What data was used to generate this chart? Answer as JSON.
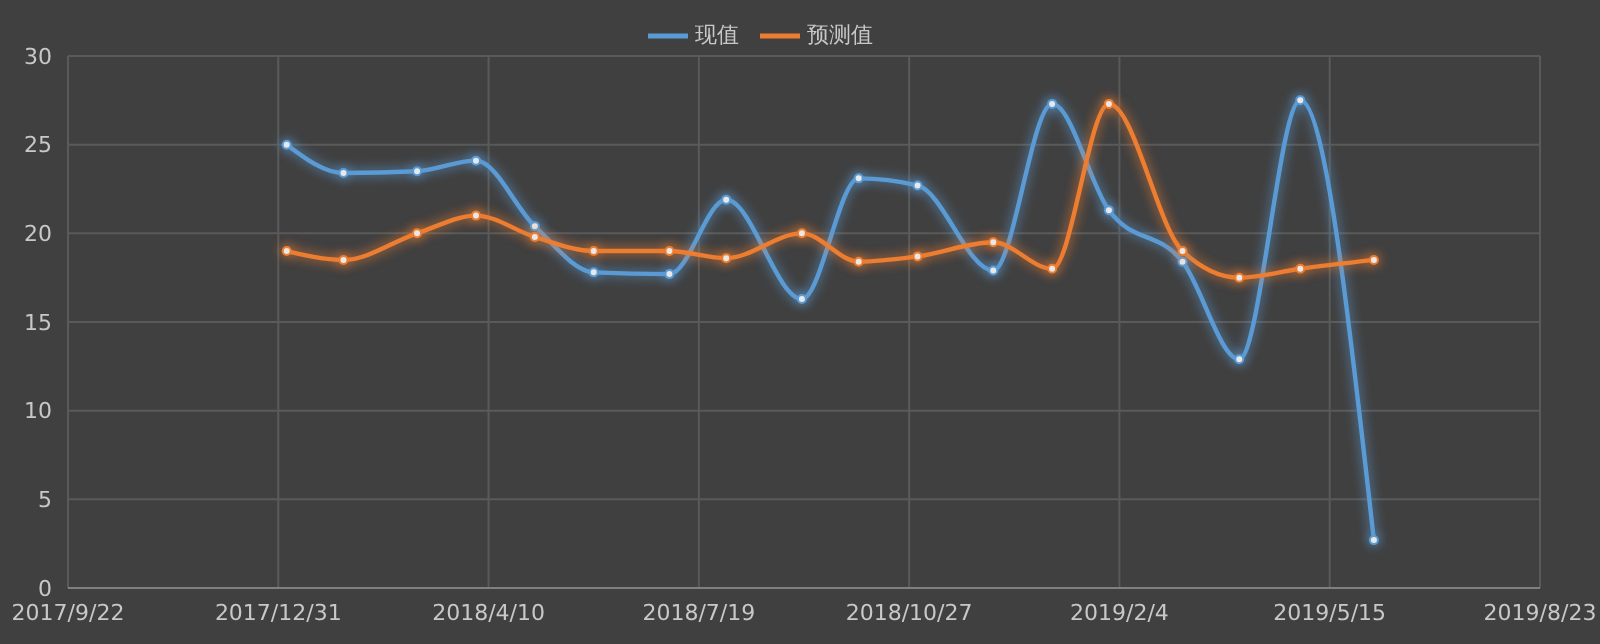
{
  "chart_data": {
    "type": "line",
    "x": [
      "2018-01-04",
      "2018-01-31",
      "2018-03-07",
      "2018-04-04",
      "2018-05-02",
      "2018-05-30",
      "2018-07-05",
      "2018-08-01",
      "2018-09-06",
      "2018-10-03",
      "2018-10-31",
      "2018-12-06",
      "2019-01-03",
      "2019-01-30",
      "2019-03-06",
      "2019-04-02",
      "2019-05-01",
      "2019-06-05"
    ],
    "series": [
      {
        "name": "现值",
        "color": "#5b9bd5",
        "values": [
          25.0,
          23.4,
          23.5,
          24.1,
          20.4,
          17.8,
          17.7,
          21.9,
          16.3,
          23.1,
          22.7,
          17.9,
          27.3,
          21.3,
          18.4,
          12.9,
          27.5,
          2.7
        ]
      },
      {
        "name": "预测值",
        "color": "#ed7d31",
        "values": [
          19.0,
          18.5,
          20.0,
          21.0,
          19.8,
          19.0,
          19.0,
          18.6,
          20.0,
          18.4,
          18.7,
          19.5,
          18.0,
          27.3,
          19.0,
          17.5,
          18.0,
          18.5
        ]
      }
    ],
    "xlim": [
      "2017-09-22",
      "2019-08-23"
    ],
    "xticks": [
      {
        "value": "2017-09-22",
        "label": "2017/9/22"
      },
      {
        "value": "2017-12-31",
        "label": "2017/12/31"
      },
      {
        "value": "2018-04-10",
        "label": "2018/4/10"
      },
      {
        "value": "2018-07-19",
        "label": "2018/7/19"
      },
      {
        "value": "2018-10-27",
        "label": "2018/10/27"
      },
      {
        "value": "2019-02-04",
        "label": "2019/2/4"
      },
      {
        "value": "2019-05-15",
        "label": "2019/5/15"
      },
      {
        "value": "2019-08-23",
        "label": "2019/8/23"
      }
    ],
    "ylim": [
      0,
      30
    ],
    "yticks": [
      0,
      5,
      10,
      15,
      20,
      25,
      30
    ],
    "grid": true,
    "legend": "top",
    "marker": "circle",
    "line_style": "solid"
  }
}
